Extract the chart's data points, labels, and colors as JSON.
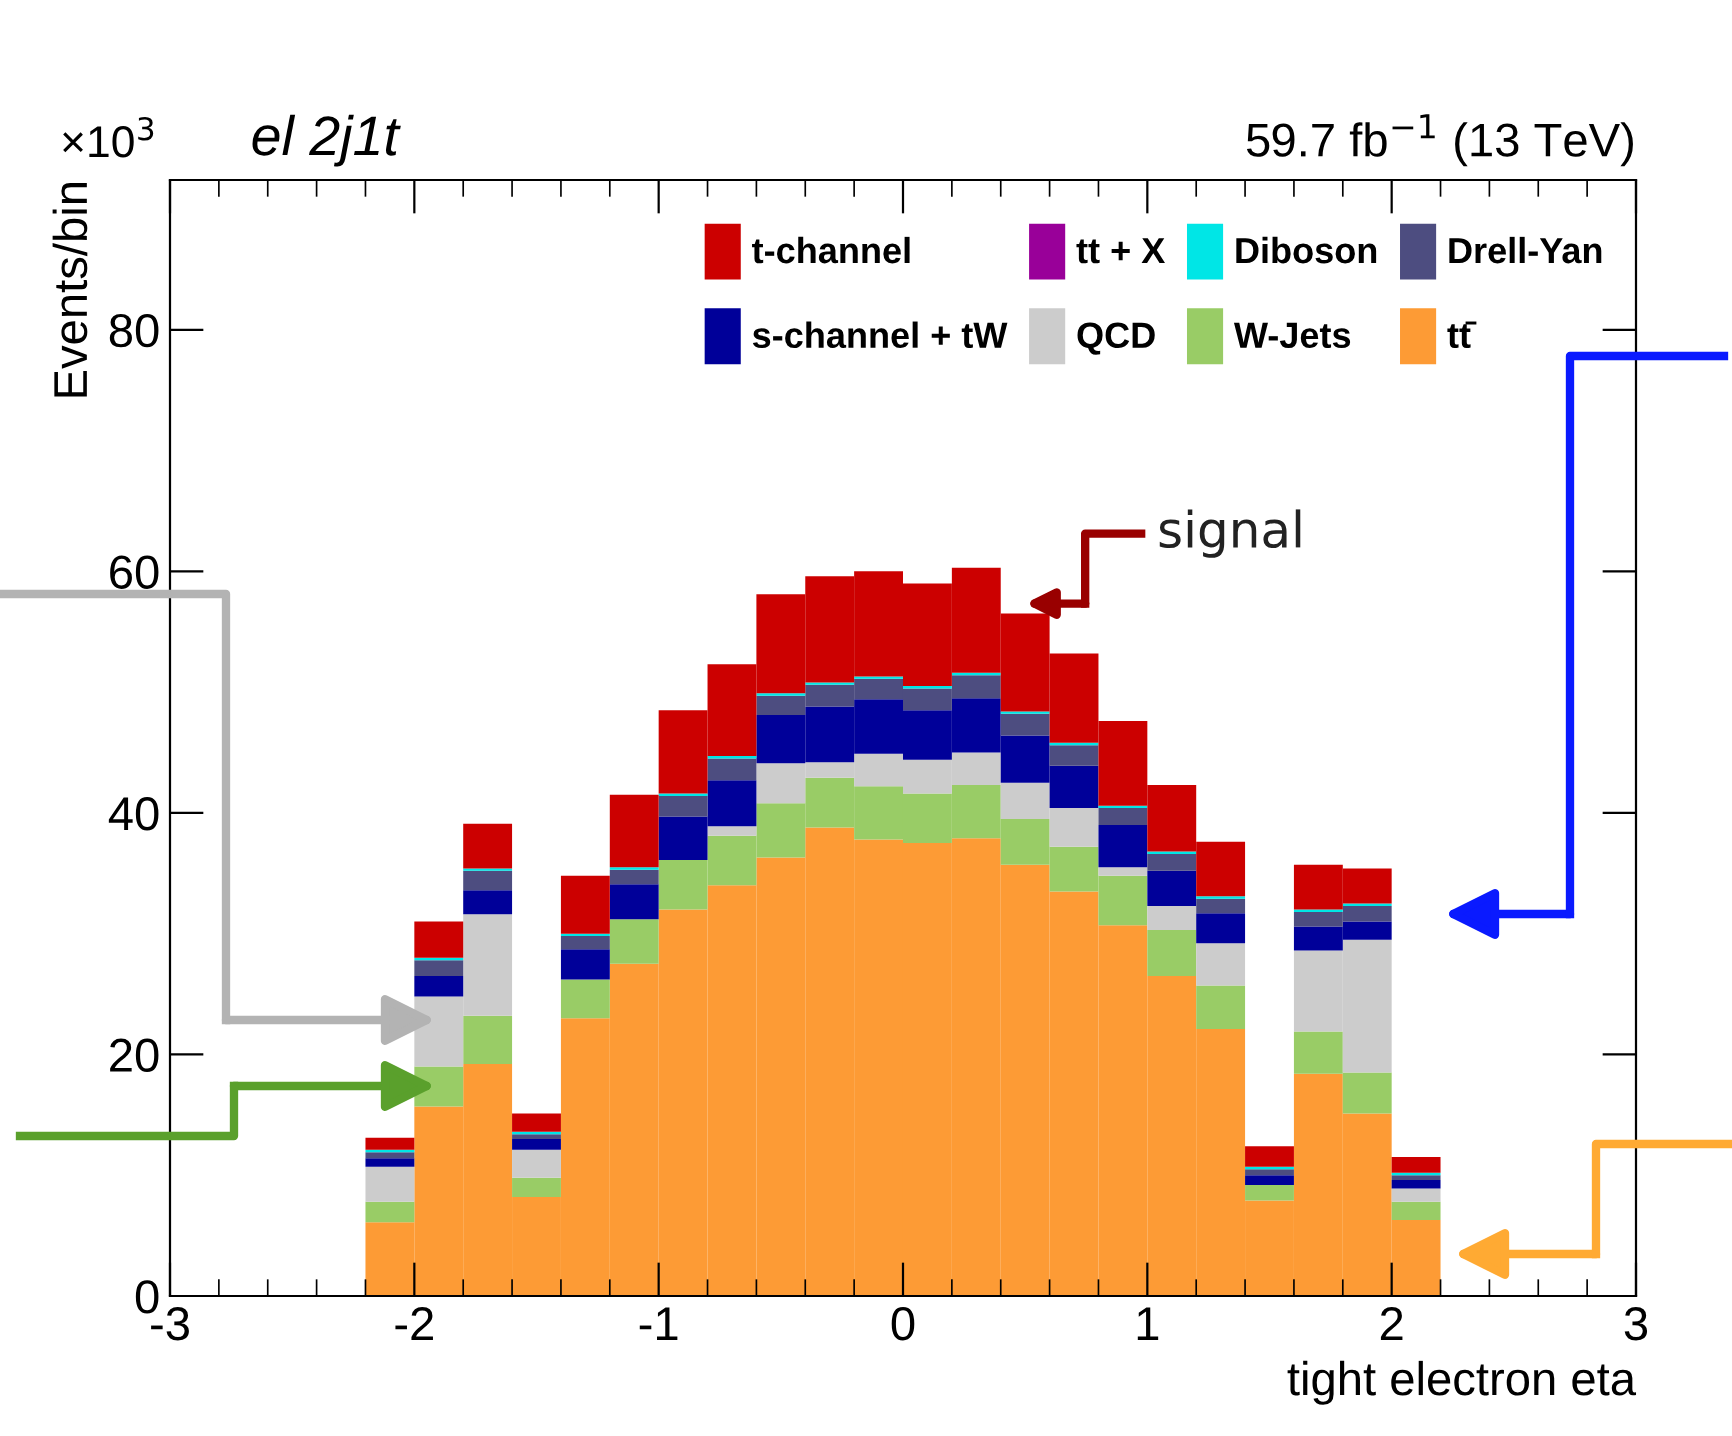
{
  "chart_data": {
    "type": "bar",
    "title": "el 2j1t",
    "subtitle": "59.7 fb$^{−1}$ (13 TeV)",
    "xlabel": "tight electron eta",
    "ylabel": "Events/bin",
    "annotations": [
      "×10$^{3}$",
      {
        "text": "signal",
        "x": 0.5,
        "y": 56.5
      }
    ],
    "x": [
      -2.1,
      -1.9,
      -1.7,
      -1.5,
      -1.3,
      -1.1,
      -0.9,
      -0.7,
      -0.5,
      -0.3,
      -0.1,
      0.1,
      0.3,
      0.5,
      0.7,
      0.9,
      1.1,
      1.3,
      1.5,
      1.7,
      1.9,
      2.1
    ],
    "stacked": true,
    "series": [
      {
        "name": "tt̄",
        "color": "#fd9b35",
        "values": [
          6.1,
          15.7,
          19.2,
          8.2,
          23.0,
          27.5,
          32.0,
          34.0,
          36.3,
          38.8,
          37.8,
          37.5,
          37.9,
          35.7,
          33.5,
          30.7,
          26.5,
          22.1,
          7.9,
          18.4,
          15.1,
          6.3
        ]
      },
      {
        "name": "W-Jets",
        "color": "#99cc66",
        "values": [
          1.7,
          3.3,
          4.0,
          1.6,
          3.2,
          3.7,
          4.1,
          4.1,
          4.5,
          4.1,
          4.4,
          4.1,
          4.4,
          3.8,
          3.7,
          4.1,
          3.8,
          3.6,
          1.3,
          3.5,
          3.4,
          1.5
        ]
      },
      {
        "name": "QCD",
        "color": "#cccccc",
        "values": [
          2.9,
          5.8,
          8.4,
          2.3,
          0.0,
          0.0,
          0.0,
          0.8,
          3.3,
          1.3,
          2.7,
          2.8,
          2.7,
          3.0,
          3.2,
          0.7,
          2.0,
          3.5,
          0.0,
          6.7,
          11.0,
          1.1
        ]
      },
      {
        "name": "s-channel + tW",
        "color": "#000099",
        "values": [
          0.7,
          1.7,
          2.0,
          0.9,
          2.5,
          2.9,
          3.6,
          3.8,
          4.0,
          4.6,
          4.5,
          4.1,
          4.5,
          3.9,
          3.5,
          3.5,
          2.9,
          2.5,
          0.8,
          2.0,
          1.5,
          0.7
        ]
      },
      {
        "name": "Drell-Yan",
        "color": "#4d4d80",
        "values": [
          0.5,
          1.3,
          1.6,
          0.4,
          1.1,
          1.2,
          1.7,
          1.8,
          1.6,
          1.8,
          1.7,
          1.8,
          1.9,
          1.8,
          1.7,
          1.4,
          1.4,
          1.2,
          0.5,
          1.2,
          1.3,
          0.4
        ]
      },
      {
        "name": "Diboson",
        "color": "#00e6e6",
        "values": [
          0.2,
          0.2,
          0.2,
          0.2,
          0.2,
          0.2,
          0.2,
          0.2,
          0.2,
          0.2,
          0.2,
          0.2,
          0.2,
          0.2,
          0.2,
          0.2,
          0.2,
          0.2,
          0.2,
          0.2,
          0.2,
          0.2
        ]
      },
      {
        "name": "tt + X",
        "color": "#990099",
        "values": [
          0,
          0,
          0,
          0,
          0,
          0,
          0,
          0,
          0,
          0,
          0,
          0,
          0,
          0,
          0,
          0,
          0,
          0,
          0,
          0,
          0,
          0
        ]
      },
      {
        "name": "t-channel",
        "color": "#cc0000",
        "values": [
          1.0,
          3.0,
          3.7,
          1.5,
          4.8,
          6.0,
          6.9,
          7.6,
          8.2,
          8.8,
          8.7,
          8.5,
          8.7,
          8.1,
          7.4,
          7.0,
          5.5,
          4.5,
          1.7,
          3.7,
          2.9,
          1.3
        ]
      }
    ],
    "xlim": [
      -3,
      3
    ],
    "xticks": [
      -3,
      -2,
      -1,
      0,
      1,
      2,
      3
    ],
    "ylim": [
      0,
      92.4
    ],
    "yticks": [
      0,
      20,
      40,
      60,
      80
    ],
    "grid": false,
    "legend": "top right"
  }
}
